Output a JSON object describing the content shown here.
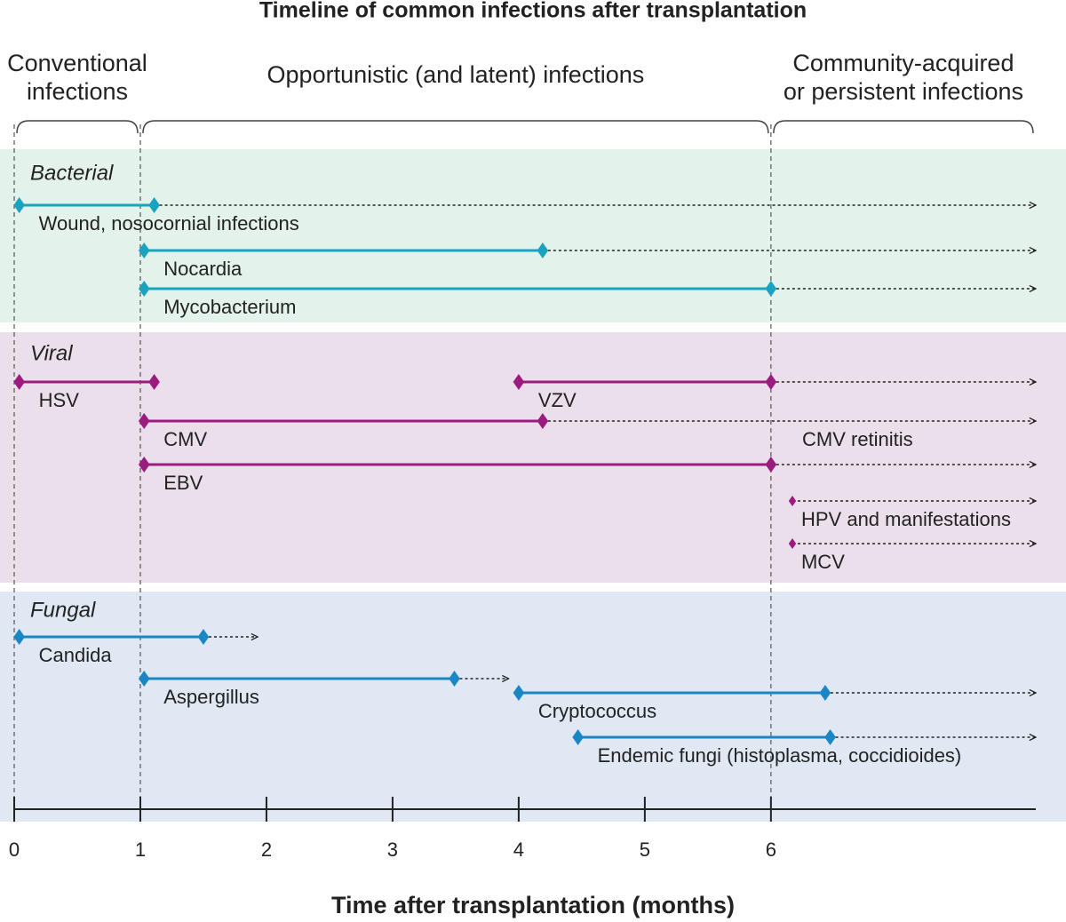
{
  "chart_data": {
    "type": "timeline",
    "title": "Timeline of common infections after transplantation",
    "x_label": "Time after transplantation (months)",
    "xlim": [
      0,
      8.1
    ],
    "xticks": [
      0,
      1,
      2,
      3,
      4,
      5,
      6
    ],
    "periods": [
      {
        "label_lines": [
          "Conventional",
          "infections"
        ],
        "start": 0,
        "end": 1
      },
      {
        "label_lines": [
          "Opportunistic (and latent) infections"
        ],
        "start": 1,
        "end": 6
      },
      {
        "label_lines": [
          "Community-acquired",
          "or persistent infections"
        ],
        "start": 6,
        "end": 8.1
      }
    ],
    "groups": [
      {
        "name": "Bacterial",
        "color": "#1aa3c0",
        "background": "#e3f2ea",
        "items": [
          {
            "label": "Wound, nosocornial infections",
            "start": 0.04,
            "end": 1.11,
            "arrow_end": 8.1
          },
          {
            "label": "Nocardia",
            "start": 1.03,
            "end": 4.19,
            "arrow_end": 8.1
          },
          {
            "label": "Mycobacterium",
            "start": 1.03,
            "end": 6.0,
            "arrow_end": 8.1
          }
        ]
      },
      {
        "name": "Viral",
        "color": "#9b1b7e",
        "background": "#ecdfec",
        "items": [
          {
            "label": "HSV",
            "start": 0.04,
            "end": 1.11,
            "arrow_end": null
          },
          {
            "label": "VZV",
            "start": 4.0,
            "end": 6.0,
            "arrow_end": 8.1
          },
          {
            "label": "CMV",
            "start": 1.03,
            "end": 4.19,
            "arrow_end": 8.1,
            "annotation": "CMV retinitis"
          },
          {
            "label": "EBV",
            "start": 1.03,
            "end": 6.0,
            "arrow_end": 8.1
          },
          {
            "label": "HPV and manifestations",
            "start": 6.17,
            "end": 6.17,
            "arrow_end": 8.1
          },
          {
            "label": "MCV",
            "start": 6.17,
            "end": 6.17,
            "arrow_end": 8.1
          }
        ]
      },
      {
        "name": "Fungal",
        "color": "#1a86c6",
        "background": "#e0e8f3",
        "items": [
          {
            "label": "Candida",
            "start": 0.04,
            "end": 1.5,
            "arrow_end": 1.93
          },
          {
            "label": "Aspergillus",
            "start": 1.03,
            "end": 3.49,
            "arrow_end": 3.92
          },
          {
            "label": "Cryptococcus",
            "start": 4.0,
            "end": 6.43,
            "arrow_end": 8.1
          },
          {
            "label": "Endemic fungi (histoplasma, coccidioides)",
            "start": 4.47,
            "end": 6.47,
            "arrow_end": 8.1
          }
        ]
      }
    ]
  }
}
